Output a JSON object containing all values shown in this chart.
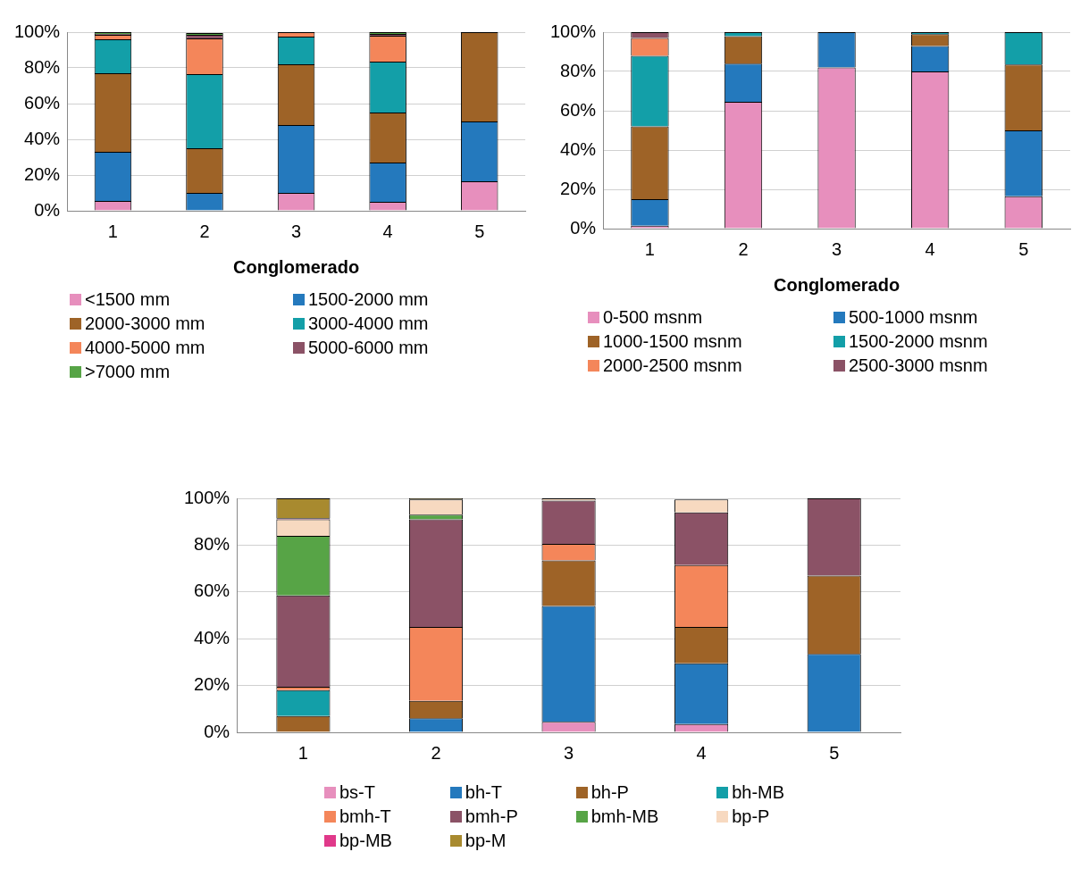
{
  "chart_data": [
    {
      "type": "bar",
      "stacked": true,
      "xlabel": "Conglomerado",
      "categories": [
        "1",
        "2",
        "3",
        "4",
        "5"
      ],
      "ylim": [
        0,
        100
      ],
      "yticks": [
        {
          "value": 0,
          "label": "0%"
        },
        {
          "value": 20,
          "label": "20%"
        },
        {
          "value": 40,
          "label": "40%"
        },
        {
          "value": 60,
          "label": "60%"
        },
        {
          "value": 80,
          "label": "80%"
        },
        {
          "value": 100,
          "label": "100%"
        }
      ],
      "grid": "y",
      "legend": "bottom",
      "series": [
        {
          "name": "<1500 mm",
          "color": "#e78fbd",
          "values": [
            5.5,
            null,
            10,
            5,
            16.5
          ]
        },
        {
          "name": "1500-2000 mm",
          "color": "#2479bd",
          "values": [
            27.5,
            10,
            38,
            22,
            33.5
          ]
        },
        {
          "name": "2000-3000 mm",
          "color": "#9e6327",
          "values": [
            44,
            25,
            34,
            28,
            50
          ]
        },
        {
          "name": "3000-4000 mm",
          "color": "#139fa8",
          "values": [
            19,
            41.5,
            15.5,
            28.5,
            0
          ]
        },
        {
          "name": "4000-5000 mm",
          "color": "#f4865a",
          "values": [
            2.5,
            20,
            2.5,
            14.5,
            0
          ]
        },
        {
          "name": "5000-6000 mm",
          "color": "#8b5266",
          "values": [
            0.5,
            2,
            0,
            1,
            0
          ]
        },
        {
          "name": ">7000 mm",
          "color": "#57a446",
          "values": [
            1,
            1,
            0,
            1,
            0
          ]
        }
      ]
    },
    {
      "type": "bar",
      "stacked": true,
      "xlabel": "Conglomerado",
      "categories": [
        "1",
        "2",
        "3",
        "4",
        "5"
      ],
      "ylim": [
        0,
        100
      ],
      "yticks": [
        {
          "value": 0,
          "label": "0%"
        },
        {
          "value": 20,
          "label": "20%"
        },
        {
          "value": 40,
          "label": "40%"
        },
        {
          "value": 60,
          "label": "60%"
        },
        {
          "value": 80,
          "label": "80%"
        },
        {
          "value": 100,
          "label": "100%"
        }
      ],
      "grid": "y",
      "legend": "bottom",
      "series": [
        {
          "name": "0-500 msnm",
          "color": "#e78fbd",
          "values": [
            1.5,
            64.5,
            82,
            80,
            16.5
          ]
        },
        {
          "name": "500-1000 msnm",
          "color": "#2479bd",
          "values": [
            13.5,
            19.5,
            18,
            13,
            33.5
          ]
        },
        {
          "name": "1000-1500 msnm",
          "color": "#9e6327",
          "values": [
            37,
            14,
            0,
            6,
            33.5
          ]
        },
        {
          "name": "1500-2000 msnm",
          "color": "#139fa8",
          "values": [
            36,
            2,
            0,
            1,
            16.5
          ]
        },
        {
          "name": "2000-2500 msnm",
          "color": "#f4865a",
          "values": [
            9,
            0,
            0,
            0,
            0
          ]
        },
        {
          "name": "2500-3000 msnm",
          "color": "#8b5266",
          "values": [
            3,
            0,
            0,
            0,
            0
          ]
        }
      ]
    },
    {
      "type": "bar",
      "stacked": true,
      "categories": [
        "1",
        "2",
        "3",
        "4",
        "5"
      ],
      "ylim": [
        0,
        100
      ],
      "yticks": [
        {
          "value": 0,
          "label": "0%"
        },
        {
          "value": 20,
          "label": "20%"
        },
        {
          "value": 40,
          "label": "40%"
        },
        {
          "value": 60,
          "label": "60%"
        },
        {
          "value": 80,
          "label": "80%"
        },
        {
          "value": 100,
          "label": "100%"
        }
      ],
      "grid": "y",
      "legend": "bottom",
      "series": [
        {
          "name": "bs-T",
          "color": "#e78fbd",
          "values": [
            0,
            0,
            4.5,
            3.5,
            0
          ]
        },
        {
          "name": "bh-T",
          "color": "#2479bd",
          "values": [
            0,
            6,
            49.5,
            26,
            33.5
          ]
        },
        {
          "name": "bh-P",
          "color": "#9e6327",
          "values": [
            7,
            7.5,
            19.5,
            15.5,
            33.5
          ]
        },
        {
          "name": "bh-MB",
          "color": "#139fa8",
          "values": [
            11,
            0,
            0,
            0,
            0
          ]
        },
        {
          "name": "bmh-T",
          "color": "#f4865a",
          "values": [
            1.5,
            31.5,
            7,
            26.5,
            0
          ]
        },
        {
          "name": "bmh-P",
          "color": "#8b5266",
          "values": [
            39,
            46,
            18.5,
            22.5,
            33
          ]
        },
        {
          "name": "bmh-MB",
          "color": "#57a446",
          "values": [
            25.5,
            2,
            0,
            null,
            0
          ]
        },
        {
          "name": "bp-P",
          "color": "#f7d9c0",
          "values": [
            7,
            6.5,
            1,
            5.5,
            0
          ]
        },
        {
          "name": "bp-MB",
          "color": "#e0398a",
          "values": [
            0.5,
            0,
            0,
            0,
            0
          ]
        },
        {
          "name": "bp-M",
          "color": "#a88a2f",
          "values": [
            8.5,
            0.5,
            0,
            0,
            0
          ]
        }
      ]
    }
  ]
}
